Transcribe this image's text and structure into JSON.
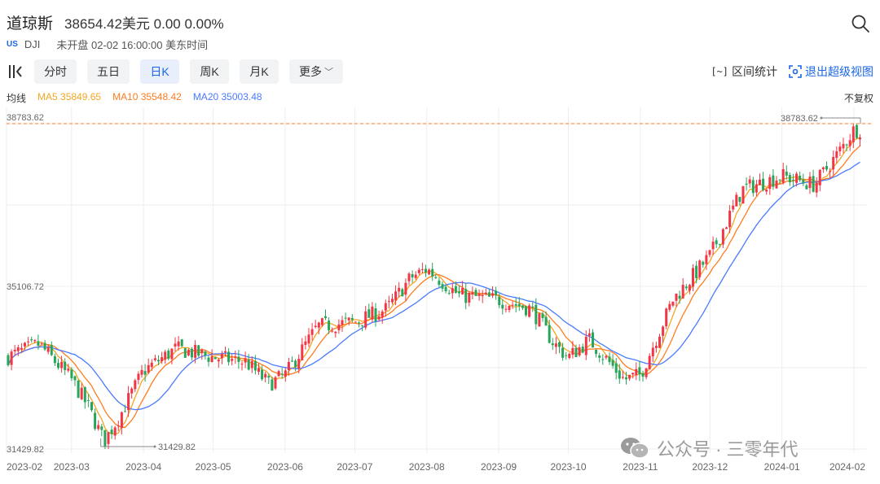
{
  "header": {
    "name": "道琼斯",
    "quote": "38654.42美元 0.00 0.00%",
    "market": "US",
    "symbol": "DJI",
    "status": "未开盘 02-02 16:00:00 美东时间"
  },
  "toolbar": {
    "tabs": [
      "分时",
      "五日",
      "日K",
      "周K",
      "月K",
      "更多"
    ],
    "active_tab": "日K",
    "range_label": "区间统计",
    "exit_label": "退出超级视图"
  },
  "ma_bar": {
    "label": "均线",
    "ma5": "MA5 35849.65",
    "ma10": "MA10 35548.42",
    "ma20": "MA20 35003.48",
    "adjust": "不复权"
  },
  "watermark": "公众号 · 三零年代",
  "colors": {
    "up": "#f23645",
    "down": "#26a65b",
    "ma5": "#f5a623",
    "ma10": "#ff7d1f",
    "ma20": "#4a7bff",
    "accent": "#1a66e8"
  },
  "chart_data": {
    "type": "candlestick",
    "ylim": [
      31429.82,
      38783.62
    ],
    "y_ticks": [
      "38783.62",
      "35106.72",
      "31429.82"
    ],
    "x_ticks": [
      "2023-02",
      "2023-03",
      "2023-04",
      "2023-05",
      "2023-06",
      "2023-07",
      "2023-08",
      "2023-09",
      "2023-10",
      "2023-11",
      "2023-12",
      "2024-01",
      "2024-02"
    ],
    "high_annotation": "38783.62",
    "low_annotation": "31429.82",
    "anchors": [
      [
        "2023-02",
        33500
      ],
      [
        "2023-02-15",
        33800
      ],
      [
        "2023-03",
        33000
      ],
      [
        "2023-03-08",
        32400
      ],
      [
        "2023-03-15",
        31600
      ],
      [
        "2023-03-22",
        32200
      ],
      [
        "2023-04",
        33200
      ],
      [
        "2023-04-15",
        33700
      ],
      [
        "2023-05",
        33500
      ],
      [
        "2023-05-15",
        33400
      ],
      [
        "2023-05-25",
        32900
      ],
      [
        "2023-06",
        33100
      ],
      [
        "2023-06-15",
        34200
      ],
      [
        "2023-07",
        34300
      ],
      [
        "2023-07-15",
        34600
      ],
      [
        "2023-07-25",
        35300
      ],
      [
        "2023-08",
        35500
      ],
      [
        "2023-08-15",
        34900
      ],
      [
        "2023-09",
        34800
      ],
      [
        "2023-09-15",
        34600
      ],
      [
        "2023-09-25",
        33800
      ],
      [
        "2023-10",
        33500
      ],
      [
        "2023-10-10",
        33900
      ],
      [
        "2023-10-25",
        33000
      ],
      [
        "2023-11",
        33100
      ],
      [
        "2023-11-15",
        34800
      ],
      [
        "2023-12",
        35800
      ],
      [
        "2023-12-15",
        37300
      ],
      [
        "2024-01",
        37600
      ],
      [
        "2024-01-15",
        37400
      ],
      [
        "2024-01-25",
        38100
      ],
      [
        "2024-02",
        38650
      ]
    ]
  }
}
